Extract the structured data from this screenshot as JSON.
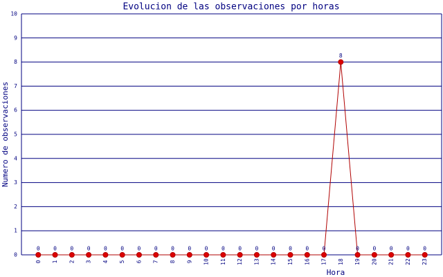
{
  "chart_data": {
    "type": "line",
    "title": "Evolucion de las observaciones por horas",
    "x_label": "Hora",
    "y_label": "Numero de observaciones",
    "categories": [
      "0",
      "1",
      "2",
      "3",
      "4",
      "5",
      "6",
      "7",
      "8",
      "9",
      "10",
      "11",
      "12",
      "13",
      "14",
      "15",
      "16",
      "17",
      "18",
      "19",
      "20",
      "21",
      "22",
      "23"
    ],
    "values": [
      0,
      0,
      0,
      0,
      0,
      0,
      0,
      0,
      0,
      0,
      0,
      0,
      0,
      0,
      0,
      0,
      0,
      0,
      8,
      0,
      0,
      0,
      0,
      0
    ],
    "color": "#b00000",
    "marker_color": "#dd0000",
    "grid_color": "#000080",
    "ylim": [
      0,
      10
    ],
    "yticks": [
      0,
      1,
      2,
      3,
      4,
      5,
      6,
      7,
      8,
      9,
      10
    ],
    "grid": true
  }
}
